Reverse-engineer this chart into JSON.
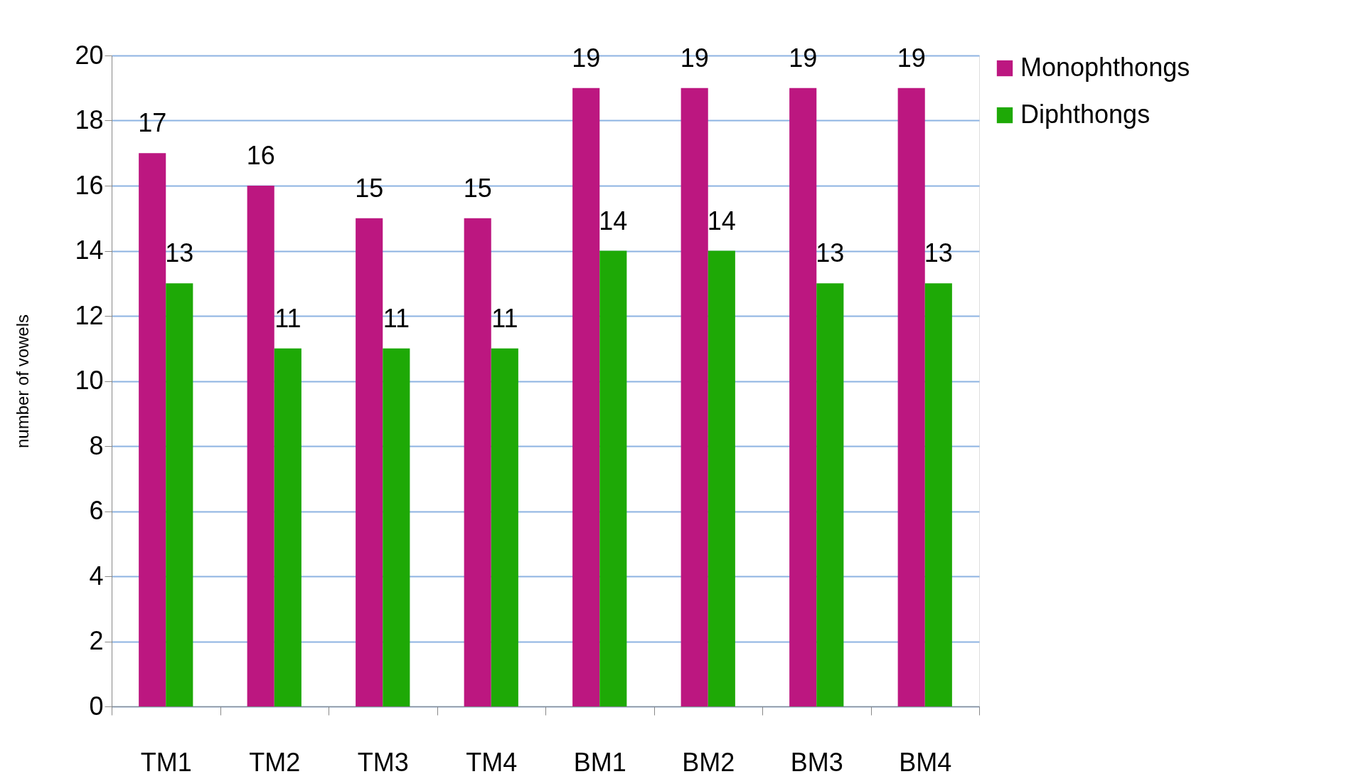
{
  "chart_data": {
    "type": "bar",
    "ylabel": "number of vowels",
    "categories": [
      "TM1",
      "TM2",
      "TM3",
      "TM4",
      "BM1",
      "BM2",
      "BM3",
      "BM4"
    ],
    "series": [
      {
        "name": "Monophthongs",
        "color": "#bc1780",
        "values": [
          17,
          16,
          15,
          15,
          19,
          19,
          19,
          19
        ],
        "value_labels": [
          "17",
          "16",
          "15",
          "15",
          "19",
          "19",
          "19",
          "19"
        ]
      },
      {
        "name": "Diphthongs",
        "color": "#1ea906",
        "values": [
          13,
          11,
          11,
          11,
          14,
          14,
          13,
          13
        ],
        "value_labels": [
          "13",
          "11",
          "11",
          "11",
          "14",
          "14",
          "13",
          "13"
        ]
      }
    ],
    "ylim": [
      0,
      20
    ],
    "yticks": [
      0,
      2,
      4,
      6,
      8,
      10,
      12,
      14,
      16,
      18,
      20
    ],
    "grid": "y",
    "legend": "right"
  }
}
